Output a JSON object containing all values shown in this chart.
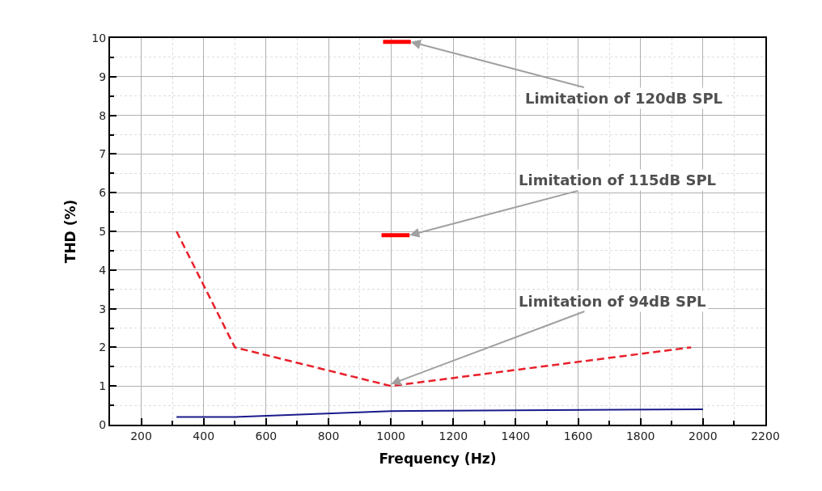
{
  "chart_data": {
    "type": "line",
    "xlabel": "Frequency (Hz)",
    "ylabel": "THD (%)",
    "series": [
      {
        "color": "#e8202a",
        "line_style": "dashed",
        "x": [
          313,
          500,
          1000,
          1962
        ],
        "values": [
          5,
          2,
          1,
          2
        ]
      },
      {
        "color": "#1a1a8c",
        "line_style": "solid",
        "x": [
          313,
          500,
          1000,
          2000
        ],
        "values": [
          0.2,
          0.2,
          0.35,
          0.4
        ]
      },
      {
        "color": "#ff0000",
        "line_style": "solid",
        "x": [
          975,
          1064
        ],
        "values": [
          9.9,
          9.9
        ]
      },
      {
        "color": "#ff0000",
        "line_style": "solid",
        "x": [
          970,
          1060
        ],
        "values": [
          4.9,
          4.9
        ]
      }
    ],
    "xlim": [
      100,
      2200
    ],
    "xticks": [
      {
        "value": 100,
        "label": null
      },
      200,
      {
        "value": 300,
        "label": null
      },
      400,
      {
        "value": 500,
        "label": null
      },
      600,
      {
        "value": 700,
        "label": null
      },
      800,
      {
        "value": 900,
        "label": null
      },
      1000,
      {
        "value": 1100,
        "label": null
      },
      1200,
      {
        "value": 1300,
        "label": null
      },
      1400,
      {
        "value": 1500,
        "label": null
      },
      1600,
      {
        "value": 1700,
        "label": null
      },
      1800,
      {
        "value": 1900,
        "label": null
      },
      2000,
      {
        "value": 2100,
        "label": null
      },
      2200
    ],
    "ylim": [
      0,
      10
    ],
    "yticks": [
      0,
      {
        "value": 0.5,
        "label": null
      },
      1,
      {
        "value": 1.5,
        "label": null
      },
      2,
      {
        "value": 2.5,
        "label": null
      },
      3,
      {
        "value": 3.5,
        "label": null
      },
      4,
      {
        "value": 4.5,
        "label": null
      },
      5,
      {
        "value": 5.5,
        "label": null
      },
      6,
      {
        "value": 6.5,
        "label": null
      },
      7,
      {
        "value": 7.5,
        "label": null
      },
      8,
      {
        "value": 8.5,
        "label": null
      },
      9,
      {
        "value": 9.5,
        "label": null
      },
      10
    ],
    "grid": true,
    "annotations": [
      {
        "text": "Limitation of 120dB SPL",
        "x": 1064,
        "y": 9.9
      },
      {
        "text": "Limitation of 115dB SPL",
        "x": 1060,
        "y": 4.9
      },
      {
        "text": "Limitation of 94dB SPL",
        "x": 1000,
        "y": 1.05
      }
    ]
  }
}
